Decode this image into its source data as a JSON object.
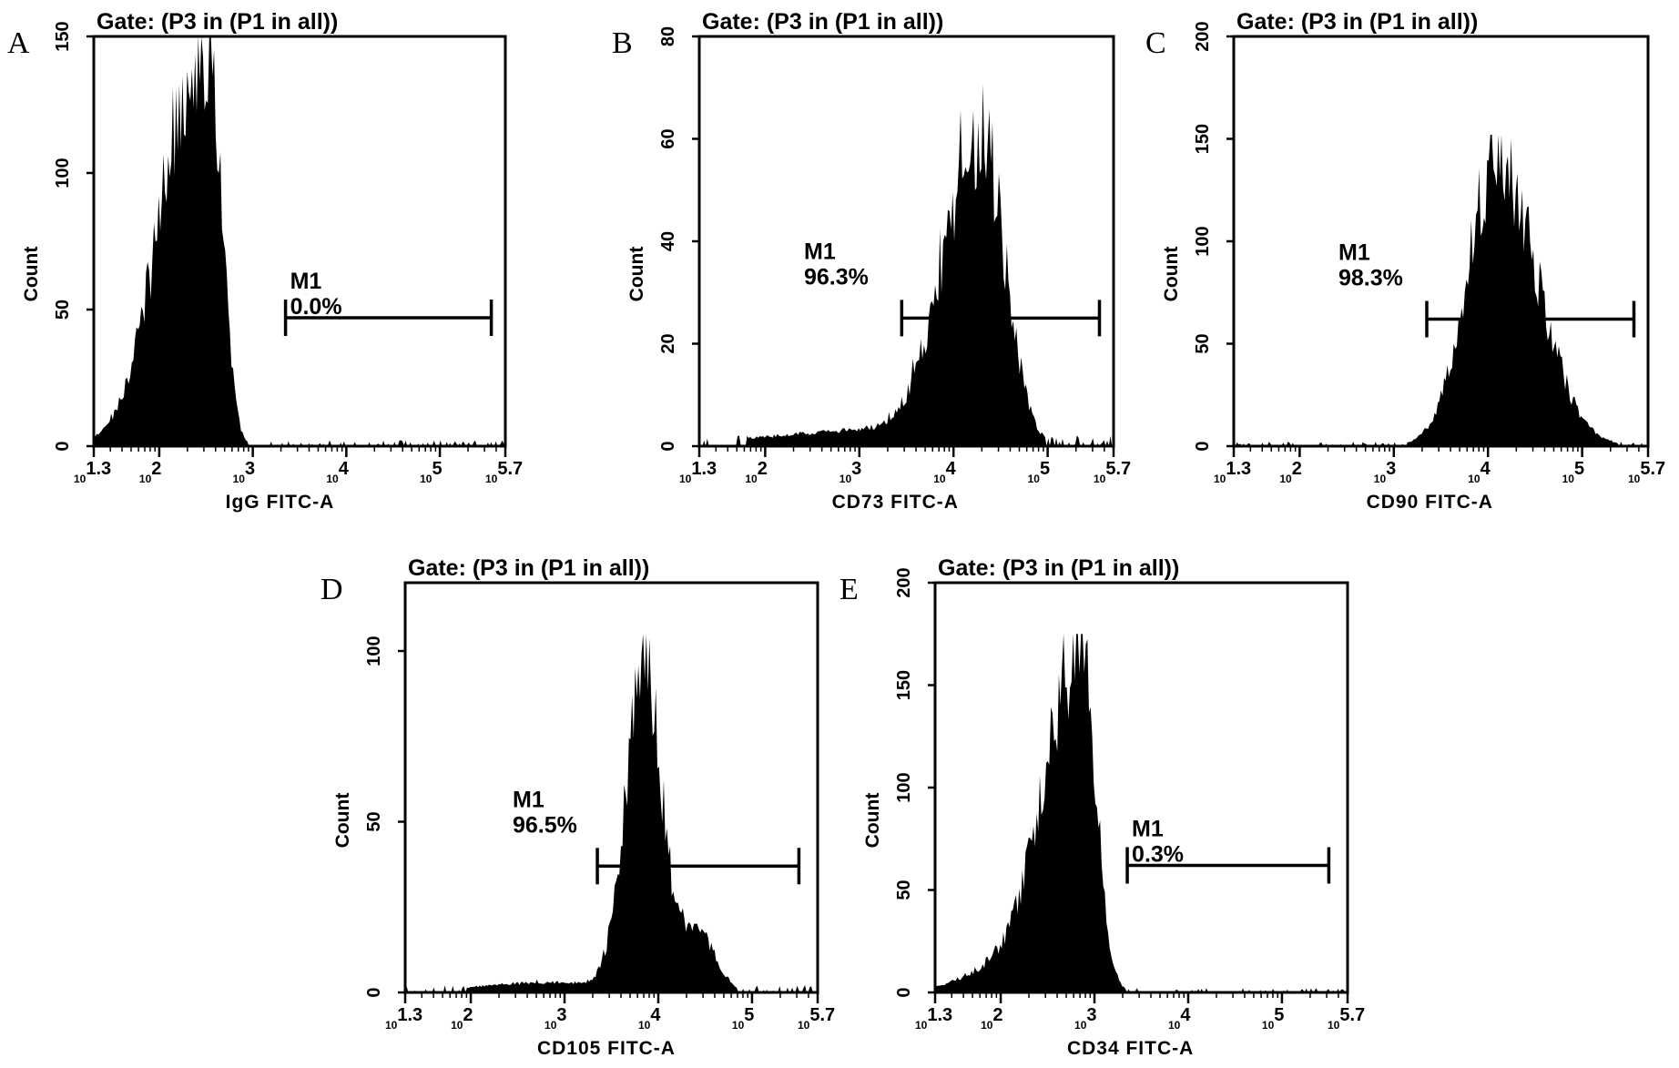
{
  "chart_data": [
    {
      "type": "histogram",
      "panel": "A",
      "title": "Gate: (P3 in (P1 in all))",
      "xlabel": "IgG FITC-A",
      "ylabel": "Count",
      "x_scale": "log10",
      "xlim": [
        1.3,
        5.7
      ],
      "x_ticks": [
        "1.3",
        "2",
        "3",
        "4",
        "5",
        "5.7"
      ],
      "ylim": [
        0,
        150
      ],
      "y_ticks": [
        0,
        50,
        100,
        150
      ],
      "marker": {
        "name": "M1",
        "percent": "0.0%",
        "x_start": 3.35,
        "x_end": 5.55,
        "y": 47
      },
      "peaks": [
        {
          "center": 2.55,
          "sigma_left": 0.42,
          "sigma_right": 0.13,
          "height": 132
        },
        {
          "center": 2.15,
          "sigma_left": 0.35,
          "sigma_right": 0.25,
          "height": 30
        }
      ],
      "max_count": 150
    },
    {
      "type": "histogram",
      "panel": "B",
      "title": "Gate: (P3 in (P1 in all))",
      "xlabel": "CD73 FITC-A",
      "ylabel": "Count",
      "x_scale": "log10",
      "xlim": [
        1.3,
        5.7
      ],
      "x_ticks": [
        "1.3",
        "2",
        "3",
        "4",
        "5",
        "5.7"
      ],
      "ylim": [
        0,
        80
      ],
      "y_ticks": [
        0,
        20,
        40,
        60,
        80
      ],
      "marker": {
        "name": "M1",
        "percent": "96.3%",
        "x_start": 3.45,
        "x_end": 5.55,
        "y": 25
      },
      "peaks": [
        {
          "center": 4.3,
          "sigma_left": 0.4,
          "sigma_right": 0.25,
          "height": 60
        },
        {
          "center": 3.0,
          "sigma_left": 1.0,
          "sigma_right": 0.6,
          "height": 3
        }
      ],
      "max_count": 73
    },
    {
      "type": "histogram",
      "panel": "C",
      "title": "Gate: (P3 in (P1 in all))",
      "xlabel": "CD90 FITC-A",
      "ylabel": "Count",
      "x_scale": "log10",
      "xlim": [
        1.3,
        5.7
      ],
      "x_ticks": [
        "1.3",
        "2",
        "3",
        "4",
        "5",
        "5.7"
      ],
      "ylim": [
        0,
        200
      ],
      "y_ticks": [
        0,
        50,
        100,
        150,
        200
      ],
      "marker": {
        "name": "M1",
        "percent": "98.3%",
        "x_start": 3.35,
        "x_end": 5.55,
        "y": 62
      },
      "peaks": [
        {
          "center": 4.1,
          "sigma_left": 0.32,
          "sigma_right": 0.42,
          "height": 140
        }
      ],
      "max_count": 152
    },
    {
      "type": "histogram",
      "panel": "D",
      "title": "Gate: (P3 in (P1 in all))",
      "xlabel": "CD105 FITC-A",
      "ylabel": "Count",
      "x_scale": "log10",
      "xlim": [
        1.3,
        5.7
      ],
      "x_ticks": [
        "1.3",
        "2",
        "3",
        "4",
        "5",
        "5.7"
      ],
      "ylim": [
        0,
        120
      ],
      "y_ticks": [
        0,
        50,
        100
      ],
      "marker": {
        "name": "M1",
        "percent": "96.5%",
        "x_start": 3.35,
        "x_end": 5.5,
        "y": 37
      },
      "peaks": [
        {
          "center": 3.85,
          "sigma_left": 0.2,
          "sigma_right": 0.17,
          "height": 95
        },
        {
          "center": 4.4,
          "sigma_left": 0.3,
          "sigma_right": 0.2,
          "height": 18
        },
        {
          "center": 2.9,
          "sigma_left": 0.8,
          "sigma_right": 0.5,
          "height": 3
        }
      ],
      "max_count": 105
    },
    {
      "type": "histogram",
      "panel": "E",
      "title": "Gate: (P3 in (P1 in all))",
      "xlabel": "CD34 FITC-A",
      "ylabel": "Count",
      "x_scale": "log10",
      "xlim": [
        1.3,
        5.7
      ],
      "x_ticks": [
        "1.3",
        "2",
        "3",
        "4",
        "5",
        "5.7"
      ],
      "ylim": [
        0,
        200
      ],
      "y_ticks": [
        0,
        50,
        100,
        150,
        200
      ],
      "marker": {
        "name": "M1",
        "percent": "0.3%",
        "x_start": 3.35,
        "x_end": 5.5,
        "y": 62
      },
      "peaks": [
        {
          "center": 2.85,
          "sigma_left": 0.36,
          "sigma_right": 0.16,
          "height": 168
        },
        {
          "center": 2.2,
          "sigma_left": 0.5,
          "sigma_right": 0.3,
          "height": 15
        }
      ],
      "max_count": 175
    }
  ]
}
